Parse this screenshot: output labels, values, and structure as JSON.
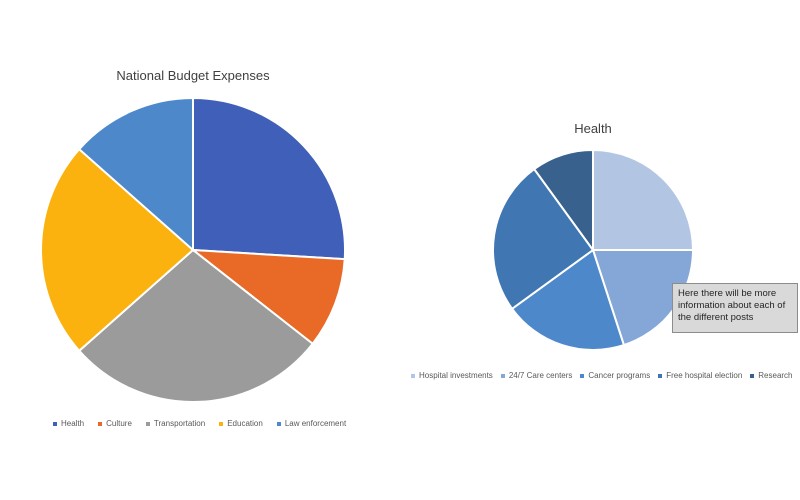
{
  "chart_data": [
    {
      "type": "pie",
      "title": "National Budget Expenses",
      "categories": [
        "Health",
        "Culture",
        "Transportation",
        "Education",
        "Law enforcement"
      ],
      "values": [
        27,
        10,
        29,
        24,
        14
      ],
      "colors": [
        "#3f5fb8",
        "#e96a26",
        "#9b9b9b",
        "#fbb20f",
        "#4d88cb"
      ],
      "legend": "bottom"
    },
    {
      "type": "pie",
      "title": "Health",
      "categories": [
        "Hospital investments",
        "24/7 Care centers",
        "Cancer programs",
        "Free hospital election",
        "Research"
      ],
      "values": [
        25,
        20,
        20,
        25,
        10
      ],
      "colors": [
        "#b2c6e4",
        "#85a7d8",
        "#4d88cb",
        "#4077b3",
        "#38618e"
      ],
      "legend": "bottom"
    }
  ],
  "tooltip": {
    "text": "Here there will be more information about each of the different posts"
  }
}
